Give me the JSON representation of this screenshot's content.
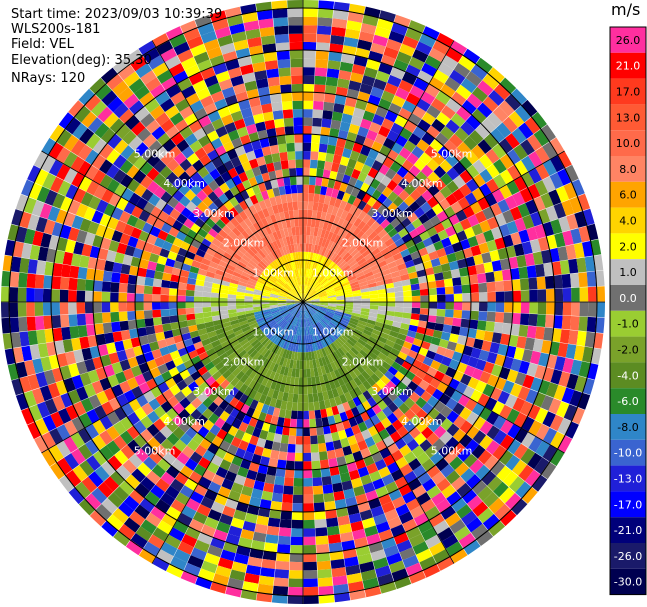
{
  "header": {
    "start_time": "Start time: 2023/09/03 10:39:39",
    "instrument": "WLS200s-181",
    "field": "Field: VEL",
    "elevation": "Elevation(deg): 35.30",
    "nrays": "NRays: 120"
  },
  "ppi": {
    "ring_labels": [
      "1.00km",
      "2.00km",
      "3.00km",
      "4.00km",
      "5.00km"
    ],
    "nrays": 120
  },
  "colorbar": {
    "unit": "m/s",
    "labels": [
      "26.0",
      "21.0",
      "17.0",
      "13.0",
      "10.0",
      "8.0",
      "6.0",
      "4.0",
      "2.0",
      "1.0",
      "0.0",
      "-1.0",
      "-2.0",
      "-4.0",
      "-6.0",
      "-8.0",
      "-10.0",
      "-13.0",
      "-17.0",
      "-21.0",
      "-26.0",
      "-30.0"
    ],
    "colors": [
      "#ff2f9f",
      "#ff0000",
      "#ff3a1e",
      "#ff5a34",
      "#ff6a4a",
      "#ff8464",
      "#ffa400",
      "#ffd400",
      "#ffff00",
      "#c0c0c0",
      "#707070",
      "#9acd32",
      "#7aa22a",
      "#5c8c22",
      "#2a8a2a",
      "#2f86c8",
      "#3a64d0",
      "#2020d8",
      "#0000ff",
      "#00007a",
      "#1a1a6a",
      "#000050"
    ]
  }
}
